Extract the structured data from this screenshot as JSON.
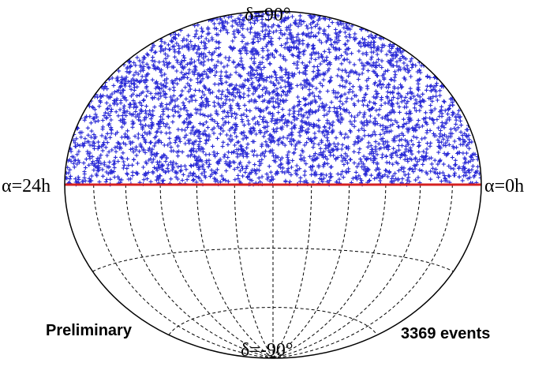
{
  "chart_data": {
    "type": "scatter",
    "projection": "hammer-aitoff",
    "coordinates": "equatorial",
    "labels": {
      "north_pole": "δ=90°",
      "south_pole": "δ=-90°",
      "left_ra": "α=24h",
      "right_ra": "α=0h"
    },
    "annotations": {
      "status": "Preliminary",
      "event_count": "3369 events"
    },
    "event_count": 3369,
    "colors": {
      "events": "#2a2ad6",
      "equator": "#d62020",
      "grid": "#000000",
      "outline": "#000000"
    },
    "grid": {
      "style": "dashed",
      "meridian_step_hours": 2,
      "parallels_deg": [
        -60,
        -30
      ]
    },
    "coverage_dec_deg": [
      0,
      90
    ],
    "equator_dec_deg": 0,
    "marker": "plus"
  }
}
